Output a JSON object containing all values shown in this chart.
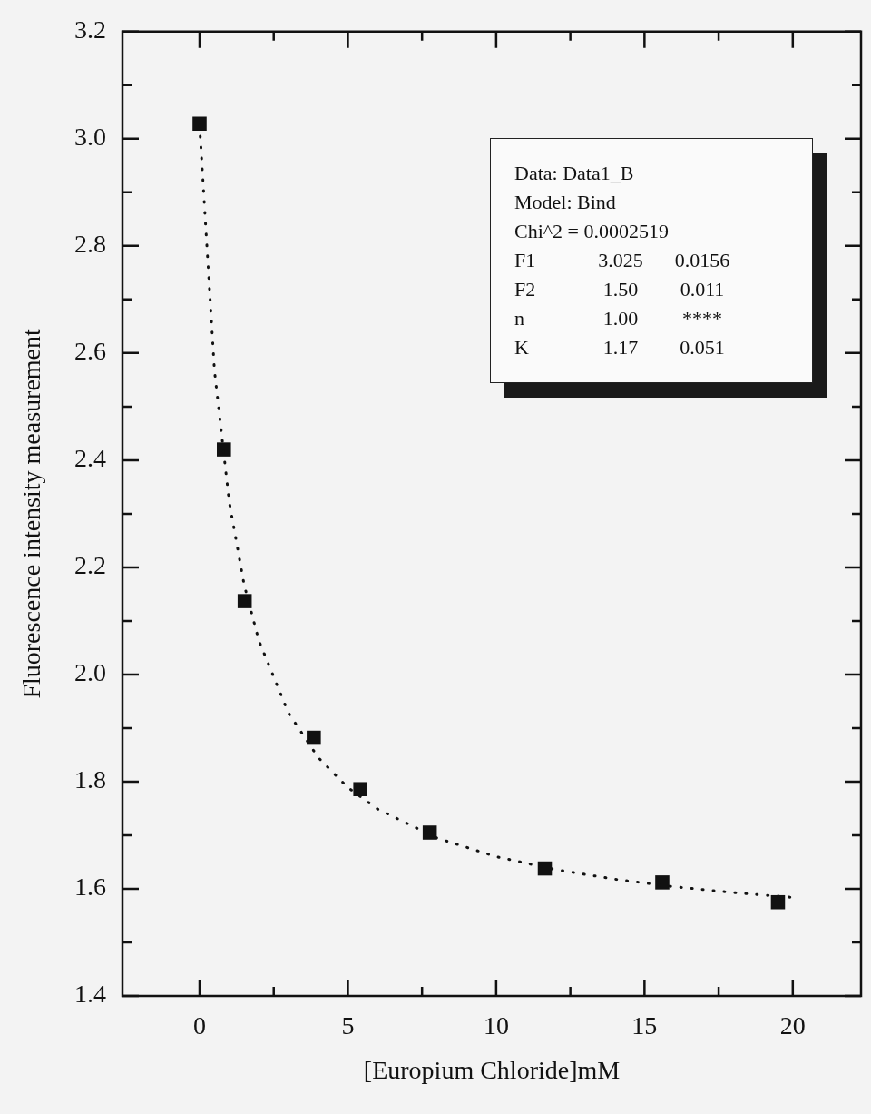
{
  "chart_data": {
    "type": "scatter",
    "xlabel": "[Europium Chloride]mM",
    "ylabel": "Fluorescence intensity measurement",
    "xlim": [
      -2.6,
      22.3
    ],
    "ylim": [
      1.4,
      3.2
    ],
    "xticks": [
      0,
      5,
      10,
      15,
      20,
      {
        "value": 2.5,
        "label": null
      },
      {
        "value": 7.5,
        "label": null
      },
      {
        "value": 12.5,
        "label": null
      },
      {
        "value": 17.5,
        "label": null
      }
    ],
    "yticks": [
      1.4,
      1.6,
      1.8,
      {
        "value": 2.0,
        "label": "2.0"
      },
      2.2,
      2.4,
      2.6,
      2.8,
      {
        "value": 3.0,
        "label": "3.0"
      },
      3.2,
      {
        "value": 1.5,
        "label": null
      },
      {
        "value": 1.7,
        "label": null
      },
      {
        "value": 1.9,
        "label": null
      },
      {
        "value": 2.1,
        "label": null
      },
      {
        "value": 2.3,
        "label": null
      },
      {
        "value": 2.5,
        "label": null
      },
      {
        "value": 2.7,
        "label": null
      },
      {
        "value": 2.9,
        "label": null
      },
      {
        "value": 3.1,
        "label": null
      }
    ],
    "grid": false,
    "legend": false,
    "marker": "square",
    "series": [
      {
        "type": "line",
        "color": "#111111",
        "marker": "none",
        "line_style": "dotted",
        "x": [
          0,
          0.5,
          1,
          1.5,
          2,
          3,
          4,
          5,
          6,
          8,
          10,
          12,
          14,
          16,
          18,
          20
        ],
        "values": [
          3.025,
          2.568,
          2.322,
          2.168,
          2.063,
          1.928,
          1.845,
          1.789,
          1.749,
          1.695,
          1.66,
          1.636,
          1.618,
          1.604,
          1.593,
          1.584
        ]
      },
      {
        "type": "scatter",
        "color": "#111111",
        "x": [
          0,
          0.82,
          1.52,
          3.85,
          5.42,
          7.76,
          11.64,
          15.6,
          19.5
        ],
        "values": [
          3.028,
          2.42,
          2.137,
          1.882,
          1.786,
          1.705,
          1.638,
          1.612,
          1.575
        ]
      }
    ],
    "annotations": [
      "Data: Data1_B",
      "Model: Bind",
      "Chi^2 = 0.0002519",
      "F1\t3.025\t0.0156",
      "F2\t1.50\t0.011",
      "n\t1.00\t****",
      "K\t1.17\t0.051"
    ]
  }
}
